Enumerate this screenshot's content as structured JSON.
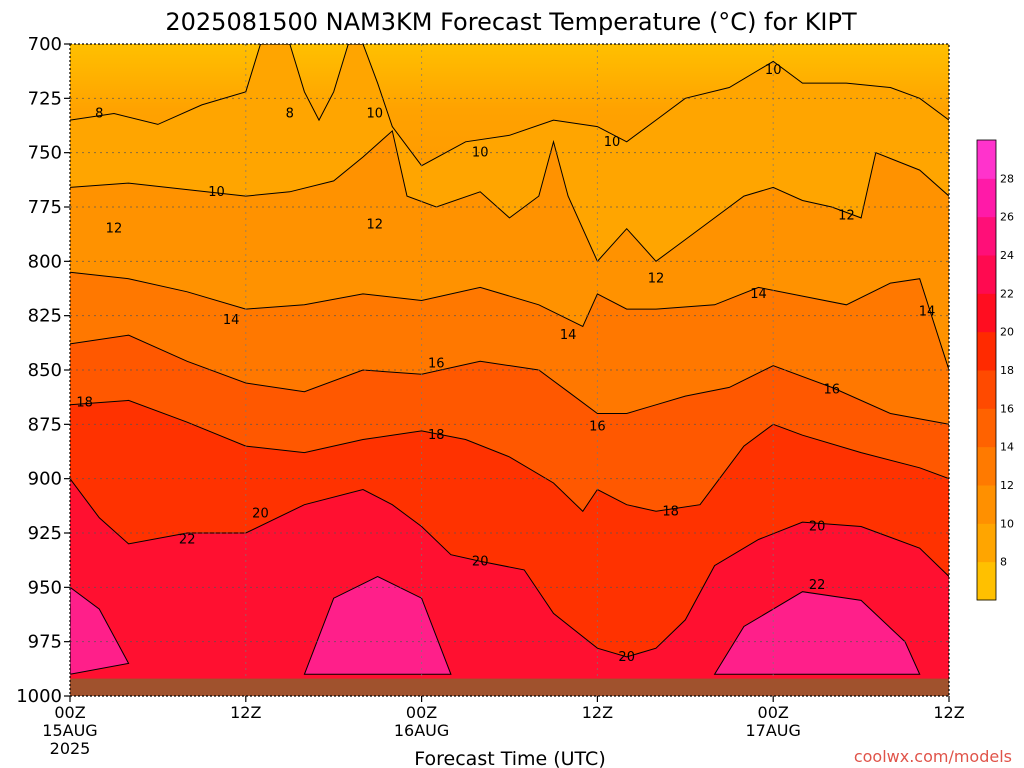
{
  "chart_data": {
    "type": "heatmap",
    "title": "2025081500 NAM3KM Forecast Temperature (°C) for KIPT",
    "xlabel": "Forecast Time (UTC)",
    "ylabel": "",
    "units": "°C",
    "x_hours": [
      0,
      12,
      24,
      36,
      48,
      60
    ],
    "x_tick_labels": [
      {
        "time": "00Z",
        "date": "15AUG",
        "year": "2025"
      },
      {
        "time": "12Z",
        "date": "",
        "year": ""
      },
      {
        "time": "00Z",
        "date": "16AUG",
        "year": ""
      },
      {
        "time": "12Z",
        "date": "",
        "year": ""
      },
      {
        "time": "00Z",
        "date": "17AUG",
        "year": ""
      },
      {
        "time": "12Z",
        "date": "",
        "year": ""
      }
    ],
    "xlim": [
      0,
      60
    ],
    "y_pressure_levels": [
      700,
      725,
      750,
      775,
      800,
      825,
      850,
      875,
      900,
      925,
      950,
      975,
      1000
    ],
    "ylim": [
      700,
      1000
    ],
    "y_inverted": true,
    "grid": true,
    "colorbar": {
      "levels": [
        8,
        10,
        12,
        14,
        16,
        18,
        20,
        22,
        24,
        26,
        28
      ],
      "colors": [
        "#ffc000",
        "#ffa500",
        "#ff9000",
        "#ff7a00",
        "#ff6200",
        "#ff4a00",
        "#ff2a00",
        "#ff0d20",
        "#ff0a50",
        "#ff0f78",
        "#ff1aa8",
        "#ff33cc"
      ]
    },
    "contour_labels": [
      {
        "value": "8",
        "hour": 2.0,
        "p": 732
      },
      {
        "value": "8",
        "hour": 15.0,
        "p": 732
      },
      {
        "value": "10",
        "hour": 20.8,
        "p": 732
      },
      {
        "value": "10",
        "hour": 28.0,
        "p": 750
      },
      {
        "value": "10",
        "hour": 37.0,
        "p": 745
      },
      {
        "value": "10",
        "hour": 48.0,
        "p": 712
      },
      {
        "value": "10",
        "hour": 10.0,
        "p": 768
      },
      {
        "value": "12",
        "hour": 3.0,
        "p": 785
      },
      {
        "value": "12",
        "hour": 20.8,
        "p": 783
      },
      {
        "value": "12",
        "hour": 40.0,
        "p": 808
      },
      {
        "value": "12",
        "hour": 53.0,
        "p": 779
      },
      {
        "value": "14",
        "hour": 11.0,
        "p": 827
      },
      {
        "value": "14",
        "hour": 34.0,
        "p": 834
      },
      {
        "value": "14",
        "hour": 47.0,
        "p": 815
      },
      {
        "value": "14",
        "hour": 58.5,
        "p": 823
      },
      {
        "value": "16",
        "hour": 25.0,
        "p": 847
      },
      {
        "value": "16",
        "hour": 36.0,
        "p": 876
      },
      {
        "value": "16",
        "hour": 52.0,
        "p": 859
      },
      {
        "value": "18",
        "hour": 1.0,
        "p": 865
      },
      {
        "value": "18",
        "hour": 25.0,
        "p": 880
      },
      {
        "value": "18",
        "hour": 41.0,
        "p": 915
      },
      {
        "value": "20",
        "hour": 13.0,
        "p": 916
      },
      {
        "value": "20",
        "hour": 28.0,
        "p": 938
      },
      {
        "value": "20",
        "hour": 38.0,
        "p": 982
      },
      {
        "value": "20",
        "hour": 51.0,
        "p": 922
      },
      {
        "value": "22",
        "hour": 8.0,
        "p": 928
      },
      {
        "value": "22",
        "hour": 51.0,
        "p": 949
      }
    ],
    "surface_color": "#a0522d"
  },
  "credit": "coolwx.com/models"
}
